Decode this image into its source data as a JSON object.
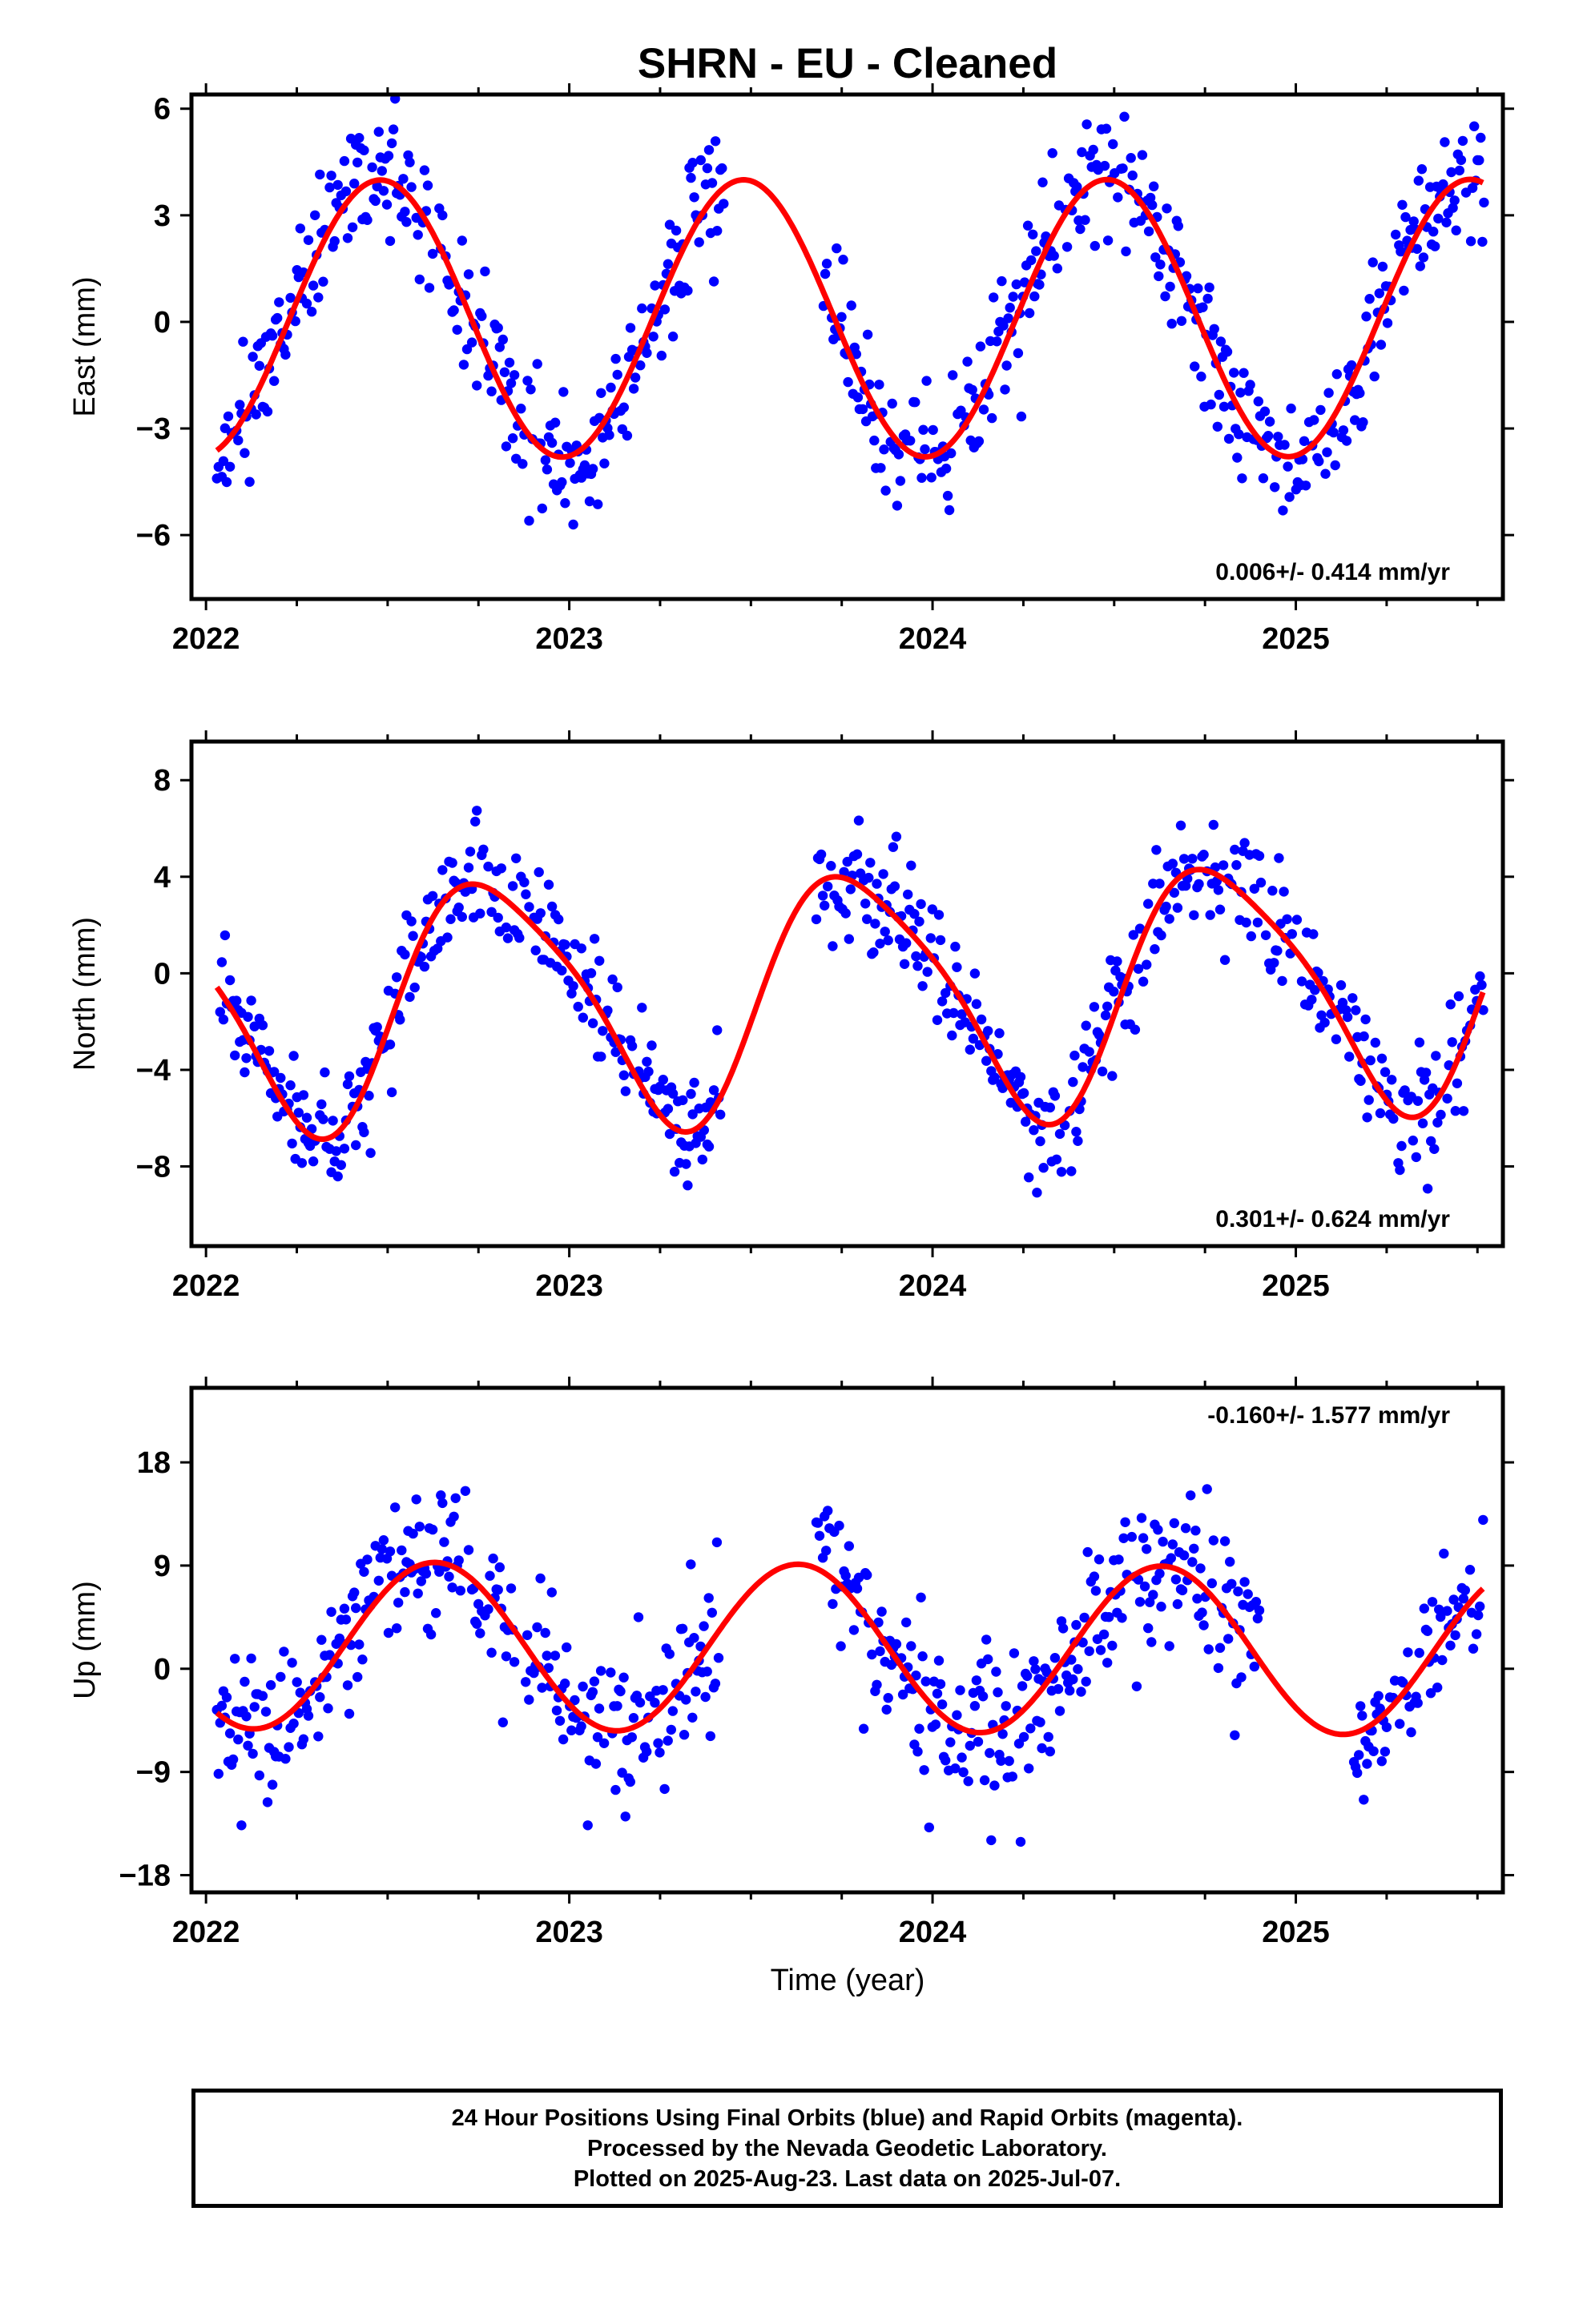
{
  "figure": {
    "title": "SHRN  - EU - Cleaned",
    "xlabel": "Time (year)",
    "caption_lines": [
      "24 Hour Positions Using Final Orbits (blue) and Rapid Orbits (magenta).",
      "Processed by the Nevada Geodetic Laboratory.",
      "Plotted on 2025-Aug-23. Last data on 2025-Jul-07."
    ],
    "colors": {
      "points": "#0000ff",
      "model": "#ff0000",
      "frame": "#000000"
    }
  },
  "chart_data": [
    {
      "type": "scatter",
      "component": "East",
      "ylabel": "East (mm)",
      "ylim": [
        -7.8,
        6.4
      ],
      "yticks": [
        -6,
        -3,
        0,
        3,
        6
      ],
      "yticklabels": [
        "−6",
        "−3",
        "0",
        "3",
        "6"
      ],
      "xlim": [
        2021.96,
        2025.57
      ],
      "xticks": [
        2022,
        2023,
        2024,
        2025
      ],
      "xticklabels": [
        "2022",
        "2023",
        "2024",
        "2025"
      ],
      "rate_text": "0.006+/- 0.414 mm/yr",
      "grid": false,
      "model": {
        "offset": 0.1,
        "amplitude": 3.9,
        "phase_year": 2022.23,
        "trend": 0.006,
        "shape": "sine-annual"
      },
      "data_segments": [
        {
          "start": 2022.03,
          "end": 2023.43,
          "noise": 0.9,
          "step": 0.0045
        },
        {
          "start": 2023.7,
          "end": 2025.52,
          "noise": 0.9,
          "step": 0.0045
        }
      ],
      "seed": 11
    },
    {
      "type": "scatter",
      "component": "North",
      "ylabel": "North (mm)",
      "ylim": [
        -11.3,
        9.6
      ],
      "yticks": [
        -8,
        -4,
        0,
        4,
        8
      ],
      "yticklabels": [
        "−8",
        "−4",
        "0",
        "4",
        "8"
      ],
      "xlim": [
        2021.96,
        2025.57
      ],
      "xticks": [
        2022,
        2023,
        2024,
        2025
      ],
      "xticklabels": [
        "2022",
        "2023",
        "2024",
        "2025"
      ],
      "rate_text": "0.301+/- 0.624 mm/yr",
      "grid": false,
      "model": {
        "offset": -0.8,
        "amplitude": 5.0,
        "phase_year": 2022.54,
        "trend": 0.301,
        "shape": "sine-annual",
        "harmonic2": 0.9
      },
      "data_segments": [
        {
          "start": 2022.03,
          "end": 2023.42,
          "noise": 1.2,
          "step": 0.0045
        },
        {
          "start": 2023.68,
          "end": 2025.52,
          "noise": 1.2,
          "step": 0.0045
        }
      ],
      "seed": 23
    },
    {
      "type": "scatter",
      "component": "Up",
      "ylabel": "Up (mm)",
      "ylim": [
        -19.5,
        24.5
      ],
      "yticks": [
        -18,
        -9,
        0,
        9,
        18
      ],
      "yticklabels": [
        "−18",
        "−9",
        "0",
        "9",
        "18"
      ],
      "xlim": [
        2021.96,
        2025.57
      ],
      "xticks": [
        2022,
        2023,
        2024,
        2025
      ],
      "xticklabels": [
        "2022",
        "2023",
        "2024",
        "2025"
      ],
      "rate_text": "-0.160+/- 1.577 mm/yr",
      "grid": false,
      "model": {
        "offset": 1.8,
        "amplitude": 7.3,
        "phase_year": 2022.38,
        "trend": -0.16,
        "shape": "sine-annual"
      },
      "data_segments": [
        {
          "start": 2022.03,
          "end": 2022.85,
          "noise": 3.4,
          "step": 0.0045
        },
        {
          "start": 2022.88,
          "end": 2023.42,
          "noise": 3.4,
          "step": 0.0045
        },
        {
          "start": 2023.68,
          "end": 2024.9,
          "noise": 3.4,
          "step": 0.0045
        },
        {
          "start": 2025.16,
          "end": 2025.52,
          "noise": 3.4,
          "step": 0.0045
        }
      ],
      "seed": 37
    }
  ]
}
